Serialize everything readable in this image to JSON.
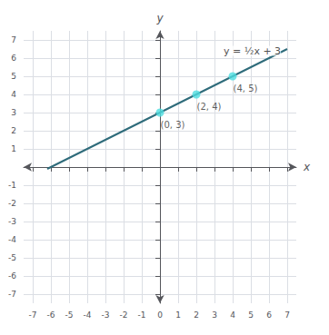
{
  "chart_data": {
    "type": "scatter",
    "xlabel": "x",
    "ylabel": "y",
    "xlim": [
      -7.5,
      7.5
    ],
    "ylim": [
      -7.5,
      7.5
    ],
    "xticks": [
      -7,
      -6,
      -5,
      -4,
      -3,
      -2,
      -1,
      0,
      1,
      2,
      3,
      4,
      5,
      6,
      7
    ],
    "yticks": [
      -7,
      -6,
      -5,
      -4,
      -3,
      -2,
      -1,
      1,
      2,
      3,
      4,
      5,
      6,
      7
    ],
    "grid": true,
    "series": [
      {
        "type": "line",
        "color": "#2E6B7A",
        "x": [
          -6.2,
          7.0
        ],
        "values": [
          -0.1,
          6.5
        ]
      },
      {
        "type": "scatter",
        "color": "#4DDDE0",
        "x": [
          0,
          2,
          4
        ],
        "values": [
          3,
          4,
          5
        ],
        "data_labels": true,
        "value_labels": [
          "(0, 3)",
          "(2, 4)",
          "(4, 5)"
        ]
      }
    ],
    "annotations": [
      {
        "text": "y = ½x + 3",
        "x": 3.5,
        "y": 6.4
      }
    ]
  }
}
